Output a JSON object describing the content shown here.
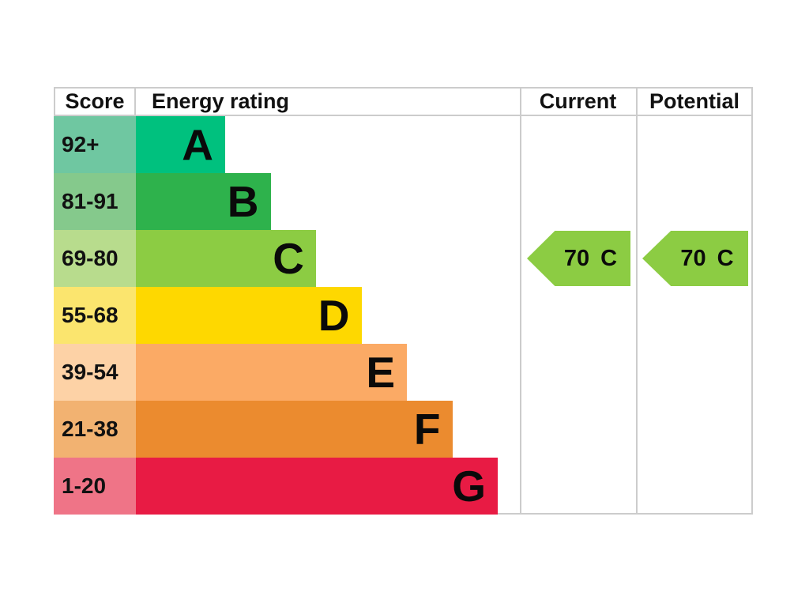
{
  "header": {
    "score": "Score",
    "energy_rating": "Energy rating",
    "current": "Current",
    "potential": "Potential"
  },
  "chart_data": {
    "type": "bar",
    "title": "EPC energy efficiency rating chart",
    "orientation": "horizontal",
    "categories": [
      "A",
      "B",
      "C",
      "D",
      "E",
      "F",
      "G"
    ],
    "bands": [
      {
        "letter": "A",
        "score_range": "92+",
        "bar_color": "#00c17e",
        "score_tint": "#6fc7a1"
      },
      {
        "letter": "B",
        "score_range": "81-91",
        "bar_color": "#2eb24c",
        "score_tint": "#85c98c"
      },
      {
        "letter": "C",
        "score_range": "69-80",
        "bar_color": "#8ccc43",
        "score_tint": "#b8dc8d"
      },
      {
        "letter": "D",
        "score_range": "55-68",
        "bar_color": "#fed800",
        "score_tint": "#fbe56e"
      },
      {
        "letter": "E",
        "score_range": "39-54",
        "bar_color": "#fbaa65",
        "score_tint": "#fdd2a6"
      },
      {
        "letter": "F",
        "score_range": "21-38",
        "bar_color": "#eb8b2f",
        "score_tint": "#f2b271"
      },
      {
        "letter": "G",
        "score_range": "1-20",
        "bar_color": "#e81b44",
        "score_tint": "#ef7487"
      }
    ],
    "current": {
      "value": "70",
      "band": "C",
      "color": "#8ccc43"
    },
    "potential": {
      "value": "70",
      "band": "C",
      "color": "#8ccc43"
    }
  }
}
